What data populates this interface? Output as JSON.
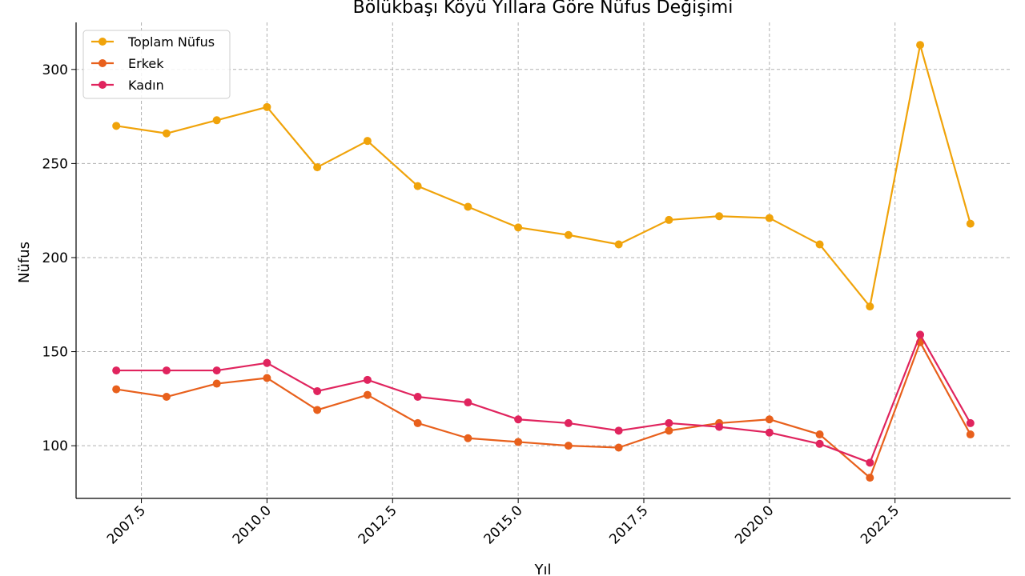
{
  "chart_data": {
    "type": "line",
    "title": "Bölükbaşı Köyü Yıllara Göre Nüfus Değişimi",
    "xlabel": "Yıl",
    "ylabel": "Nüfus",
    "xlim": [
      2006.2,
      2024.8
    ],
    "ylim": [
      72,
      325
    ],
    "x_ticks": [
      2007.5,
      2010.0,
      2012.5,
      2015.0,
      2017.5,
      2020.0,
      2022.5
    ],
    "x_tick_labels": [
      "2007.5",
      "2010.0",
      "2012.5",
      "2015.0",
      "2017.5",
      "2020.0",
      "2022.5"
    ],
    "y_ticks": [
      100,
      150,
      200,
      250,
      300
    ],
    "y_tick_labels": [
      "100",
      "150",
      "200",
      "250",
      "300"
    ],
    "grid": true,
    "legend_position": "top-left",
    "x": [
      2007,
      2008,
      2009,
      2010,
      2011,
      2012,
      2013,
      2014,
      2015,
      2016,
      2017,
      2018,
      2019,
      2020,
      2021,
      2022,
      2023,
      2024
    ],
    "series": [
      {
        "name": "Toplam Nüfus",
        "color": "#f0a30a",
        "values": [
          270,
          266,
          273,
          280,
          248,
          262,
          238,
          227,
          216,
          212,
          207,
          220,
          222,
          221,
          207,
          174,
          313,
          218
        ]
      },
      {
        "name": "Erkek",
        "color": "#e8601c",
        "values": [
          130,
          126,
          133,
          136,
          119,
          127,
          112,
          104,
          102,
          100,
          99,
          108,
          112,
          114,
          106,
          83,
          155,
          106
        ]
      },
      {
        "name": "Kadın",
        "color": "#e0245e",
        "values": [
          140,
          140,
          140,
          144,
          129,
          135,
          126,
          123,
          114,
          112,
          108,
          112,
          110,
          107,
          101,
          91,
          159,
          112
        ]
      }
    ]
  }
}
